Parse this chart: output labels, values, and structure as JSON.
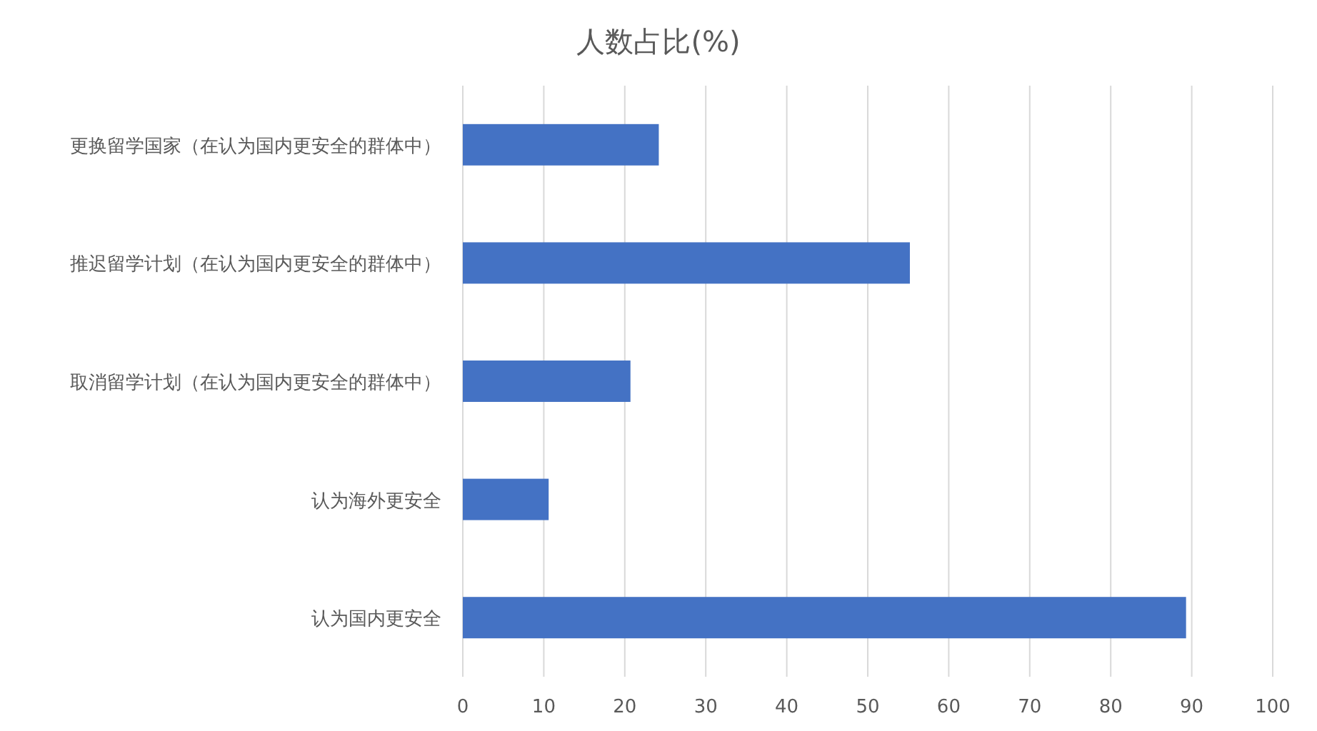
{
  "chart_data": {
    "type": "bar",
    "orientation": "horizontal",
    "title": "人数占比(%)",
    "categories": [
      "更换留学国家（在认为国内更安全的群体中）",
      "推迟留学计划（在认为国内更安全的群体中）",
      "取消留学计划（在认为国内更安全的群体中）",
      "认为海外更安全",
      "认为国内更安全"
    ],
    "values": [
      24.2,
      55.2,
      20.7,
      10.6,
      89.3
    ],
    "color": "#4472c4",
    "xlim": [
      0,
      100
    ],
    "xticks": [
      0,
      10,
      20,
      30,
      40,
      50,
      60,
      70,
      80,
      90,
      100
    ],
    "grid": "x"
  }
}
